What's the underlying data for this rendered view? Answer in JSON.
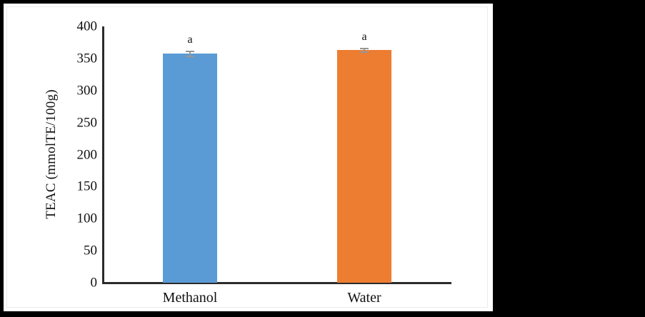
{
  "figure": {
    "background": "#000000",
    "panel_background": "#ffffff",
    "axis_color": "#2b2b2b",
    "text_color": "#111111"
  },
  "chart_data": {
    "type": "bar",
    "categories": [
      "Methanol",
      "Water"
    ],
    "values": [
      357.5,
      363
    ],
    "errors": [
      4,
      3
    ],
    "bar_labels": [
      "a",
      "a"
    ],
    "bar_colors": [
      "#5B9BD5",
      "#ED7D31"
    ],
    "error_bar_color": "#969696",
    "title": "",
    "xlabel": "",
    "ylabel": "TEAC (mmolTE/100g)",
    "ylim": [
      0,
      400
    ],
    "yticks": [
      0,
      50,
      100,
      150,
      200,
      250,
      300,
      350,
      400
    ],
    "grid": false,
    "legend": false
  }
}
